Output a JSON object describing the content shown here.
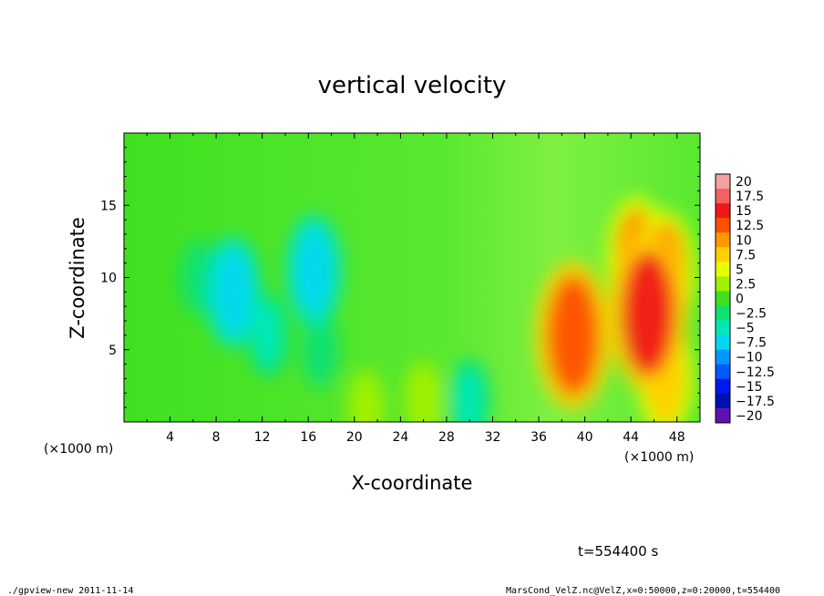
{
  "chart_data": {
    "type": "heatmap",
    "title": "vertical velocity",
    "xlabel": "X-coordinate",
    "ylabel": "Z-coordinate",
    "x_unit_label": "(×1000 m)",
    "y_unit_label": "(×1000 m)",
    "xlim": [
      0,
      50
    ],
    "ylim": [
      0,
      20
    ],
    "x_ticks": [
      4,
      8,
      12,
      16,
      20,
      24,
      28,
      32,
      36,
      40,
      44,
      48
    ],
    "y_ticks": [
      5,
      10,
      15
    ],
    "colorbar": {
      "levels": [
        "20",
        "17.5",
        "15",
        "12.5",
        "10",
        "7.5",
        "5",
        "2.5",
        "0",
        "−2.5",
        "−5",
        "−7.5",
        "−10",
        "−12.5",
        "−15",
        "−17.5",
        "−20"
      ],
      "colors": [
        "#f4a0a0",
        "#f56060",
        "#f01818",
        "#ff5000",
        "#ff9800",
        "#ffd000",
        "#e6ff00",
        "#a0f000",
        "#40e020",
        "#10e070",
        "#00e8b8",
        "#00d8f0",
        "#0098ff",
        "#0058ff",
        "#0018f0",
        "#0010b0",
        "#6010b0"
      ],
      "min": -20,
      "max": 20
    },
    "field_features": [
      {
        "kind": "updraft",
        "x": 39,
        "z": 6,
        "value": 13
      },
      {
        "kind": "updraft",
        "x": 45.5,
        "z": 7.5,
        "value": 14
      },
      {
        "kind": "updraft",
        "x": 44.5,
        "z": 11.5,
        "value": 9
      },
      {
        "kind": "updraft",
        "x": 47,
        "z": 10.5,
        "value": 9
      },
      {
        "kind": "updraft",
        "x": 47,
        "z": 3,
        "value": 8
      },
      {
        "kind": "updraft",
        "x": 21,
        "z": 1,
        "value": 3
      },
      {
        "kind": "updraft",
        "x": 26,
        "z": 1.5,
        "value": 3.5
      },
      {
        "kind": "downdraft",
        "x": 9.5,
        "z": 9,
        "value": -8
      },
      {
        "kind": "downdraft",
        "x": 16.5,
        "z": 10.5,
        "value": -8
      },
      {
        "kind": "downdraft",
        "x": 12.5,
        "z": 6,
        "value": -4
      },
      {
        "kind": "downdraft",
        "x": 6.5,
        "z": 10,
        "value": -3
      },
      {
        "kind": "downdraft",
        "x": 30,
        "z": 1.5,
        "value": -4
      },
      {
        "kind": "downdraft",
        "x": 17,
        "z": 5,
        "value": -3
      }
    ]
  },
  "time_label": "t=554400 s",
  "footer": {
    "program": "./gpview-new  2011-11-14",
    "source": "MarsCond_VelZ.nc@VelZ,x=0:50000,z=0:20000,t=554400"
  }
}
